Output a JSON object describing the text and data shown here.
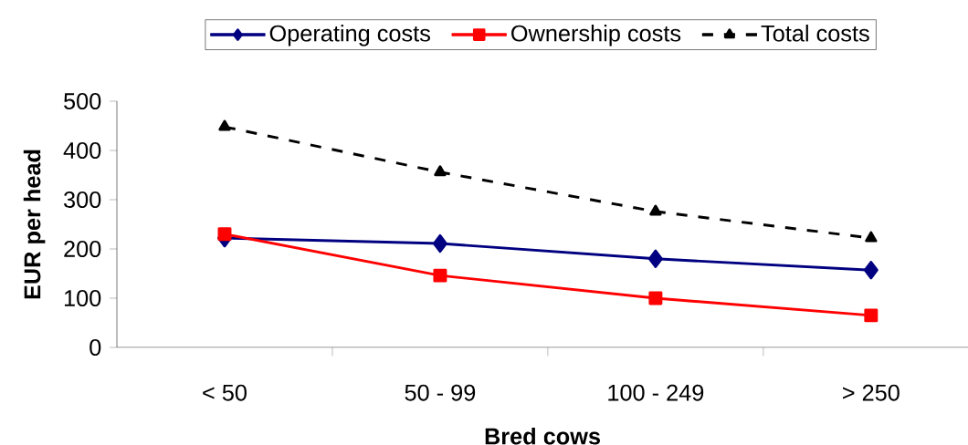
{
  "chart_data": {
    "type": "line",
    "xlabel": "Bred cows",
    "ylabel": "EUR per head",
    "categories": [
      "< 50",
      "50 - 99",
      "100 - 249",
      "> 250"
    ],
    "series": [
      {
        "name": "Operating costs",
        "color": "#000080",
        "marker": "diamond",
        "line_style": "solid",
        "values": [
          222,
          211,
          180,
          157
        ]
      },
      {
        "name": "Ownership costs",
        "color": "#ff0000",
        "marker": "square",
        "line_style": "solid",
        "values": [
          230,
          146,
          100,
          65
        ]
      },
      {
        "name": "Total costs",
        "color": "#000000",
        "marker": "triangle",
        "line_style": "dashed",
        "values": [
          448,
          356,
          276,
          222
        ]
      }
    ],
    "ylim": [
      0,
      500
    ],
    "yticks": [
      0,
      100,
      200,
      300,
      400,
      500
    ],
    "grid": false,
    "legend": "top"
  }
}
